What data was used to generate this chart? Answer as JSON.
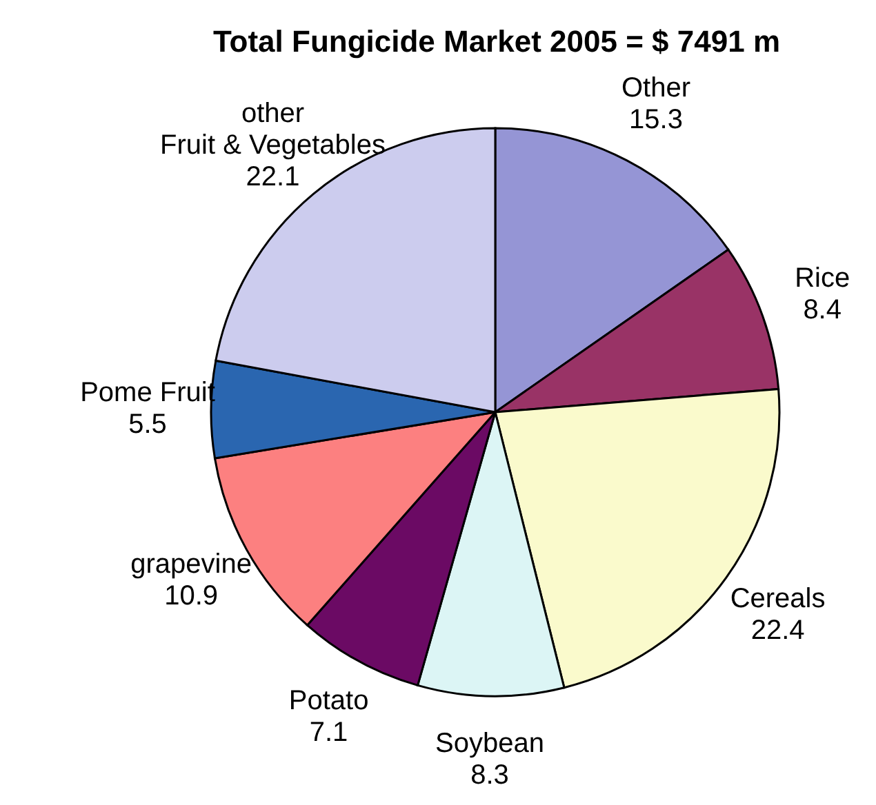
{
  "chart_data": {
    "type": "pie",
    "title": "Total Fungicide Market 2005 = $ 7491 m",
    "categories": [
      "Other",
      "Rice",
      "Cereals",
      "Soybean",
      "Potato",
      "grapevine",
      "Pome Fruit",
      "other\nFruit & Vegetables"
    ],
    "values": [
      15.3,
      8.4,
      22.4,
      8.3,
      7.1,
      10.9,
      5.5,
      22.1
    ],
    "colors": [
      "#9595d5",
      "#993366",
      "#fafacc",
      "#dcf5f5",
      "#6b0a64",
      "#fc8080",
      "#2a66b0",
      "#ccccee"
    ],
    "data_labels": true,
    "legend": false
  }
}
